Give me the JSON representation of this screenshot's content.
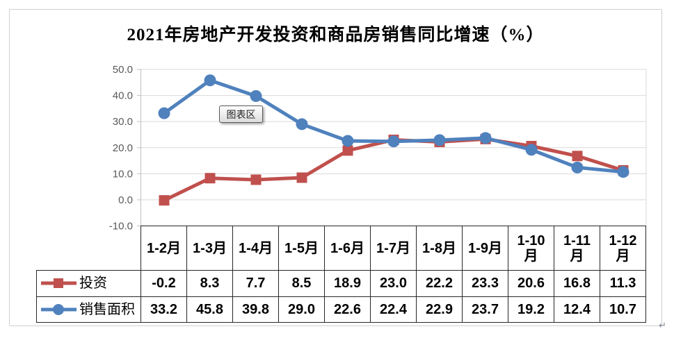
{
  "tooltip_label": "图表区",
  "paragraph_mark": "↵",
  "colors": {
    "series_investment": "#C0504D",
    "series_sales": "#4F81BD",
    "gridline": "#D9D9D9",
    "axis_line": "#BFBFBF",
    "axis_text": "#595959",
    "table_border": "#262626",
    "frame_border": "#CFCFCF"
  },
  "chart_data": {
    "type": "line",
    "title": "2021年房地产开发投资和商品房销售同比增速（%）",
    "categories": [
      "1-2月",
      "1-3月",
      "1-4月",
      "1-5月",
      "1-6月",
      "1-7月",
      "1-8月",
      "1-9月",
      "1-10月",
      "1-11月",
      "1-12月"
    ],
    "series": [
      {
        "name": "投资",
        "marker": "square",
        "color": "#C0504D",
        "values": [
          -0.2,
          8.3,
          7.7,
          8.5,
          18.9,
          23.0,
          22.2,
          23.3,
          20.6,
          16.8,
          11.3
        ]
      },
      {
        "name": "销售面积",
        "marker": "circle",
        "color": "#4F81BD",
        "values": [
          33.2,
          45.8,
          39.8,
          29.0,
          22.6,
          22.4,
          22.9,
          23.7,
          19.2,
          12.4,
          10.7
        ]
      }
    ],
    "ylim": [
      -10,
      50
    ],
    "ytick_step": 10,
    "ytick_labels": [
      "50.0",
      "40.0",
      "30.0",
      "20.0",
      "10.0",
      "0.0",
      "-10.0"
    ],
    "xlabel": "",
    "ylabel": "",
    "grid": true,
    "legend_position": "data-table-left"
  }
}
